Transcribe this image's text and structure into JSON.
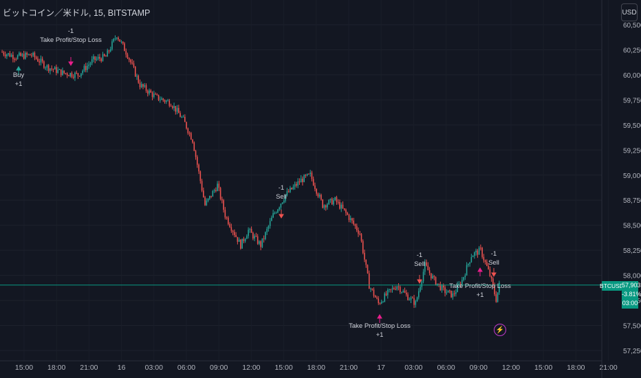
{
  "title": "ビットコイン／米ドル, 15, BITSTAMP",
  "currency_button": "USD",
  "price_panel": {
    "symbol": "BTCUSD",
    "last_price": "57,903",
    "change": "-3.81%",
    "countdown": "03:00"
  },
  "colors": {
    "background": "#131722",
    "up": "#26a69a",
    "down": "#ef5350",
    "signal": "#e91e8c",
    "price_line": "#089981"
  },
  "icons": {
    "bolt": "lightning-icon"
  },
  "chart_data": {
    "type": "candlestick",
    "symbol": "BTCUSD",
    "interval": "15",
    "exchange": "BITSTAMP",
    "ylim": [
      57250,
      60500
    ],
    "y_ticks": [
      "57,250",
      "57,500",
      "57,750",
      "58,000",
      "58,250",
      "58,500",
      "58,750",
      "59,000",
      "59,250",
      "59,500",
      "59,750",
      "60,000",
      "60,250",
      "60,500"
    ],
    "x_ticks": [
      "15:00",
      "18:00",
      "21:00",
      "16",
      "03:00",
      "06:00",
      "09:00",
      "12:00",
      "15:00",
      "18:00",
      "21:00",
      "17",
      "03:00",
      "06:00",
      "09:00",
      "12:00",
      "15:00",
      "18:00",
      "21:00"
    ],
    "last_price": 57903,
    "price_anchors": [
      [
        0,
        60230
      ],
      [
        10,
        60180
      ],
      [
        20,
        60200
      ],
      [
        30,
        60080
      ],
      [
        40,
        60020
      ],
      [
        50,
        60000
      ],
      [
        60,
        60150
      ],
      [
        68,
        60180
      ],
      [
        75,
        60400
      ],
      [
        82,
        60200
      ],
      [
        90,
        59900
      ],
      [
        100,
        59780
      ],
      [
        110,
        59720
      ],
      [
        118,
        59550
      ],
      [
        124,
        59350
      ],
      [
        132,
        58700
      ],
      [
        140,
        58900
      ],
      [
        145,
        58600
      ],
      [
        155,
        58300
      ],
      [
        160,
        58450
      ],
      [
        168,
        58300
      ],
      [
        176,
        58600
      ],
      [
        184,
        58800
      ],
      [
        194,
        58950
      ],
      [
        200,
        59000
      ],
      [
        208,
        58700
      ],
      [
        216,
        58750
      ],
      [
        224,
        58600
      ],
      [
        232,
        58420
      ],
      [
        238,
        57900
      ],
      [
        244,
        57720
      ],
      [
        250,
        57820
      ],
      [
        256,
        57900
      ],
      [
        262,
        57800
      ],
      [
        268,
        57720
      ],
      [
        274,
        58100
      ],
      [
        280,
        57950
      ],
      [
        286,
        57850
      ],
      [
        292,
        57800
      ],
      [
        298,
        57950
      ],
      [
        304,
        58200
      ],
      [
        310,
        58250
      ],
      [
        316,
        58000
      ],
      [
        320,
        57760
      ],
      [
        322,
        57903
      ]
    ],
    "annotations": [
      {
        "text": [
          "Buy",
          "+1"
        ],
        "type": "buy"
      },
      {
        "text": [
          "-1",
          "Take Profit/Stop Loss"
        ],
        "type": "exit"
      },
      {
        "text": [
          "-1",
          "Sell"
        ],
        "type": "sell"
      },
      {
        "text": [
          "Take Profit/Stop Loss",
          "+1"
        ],
        "type": "exit"
      },
      {
        "text": [
          "-1",
          "Sell"
        ],
        "type": "sell"
      },
      {
        "text": [
          "Take Profit/Stop Loss",
          "+1"
        ],
        "type": "exit"
      },
      {
        "text": [
          "-1",
          "Sell"
        ],
        "type": "sell"
      }
    ]
  }
}
